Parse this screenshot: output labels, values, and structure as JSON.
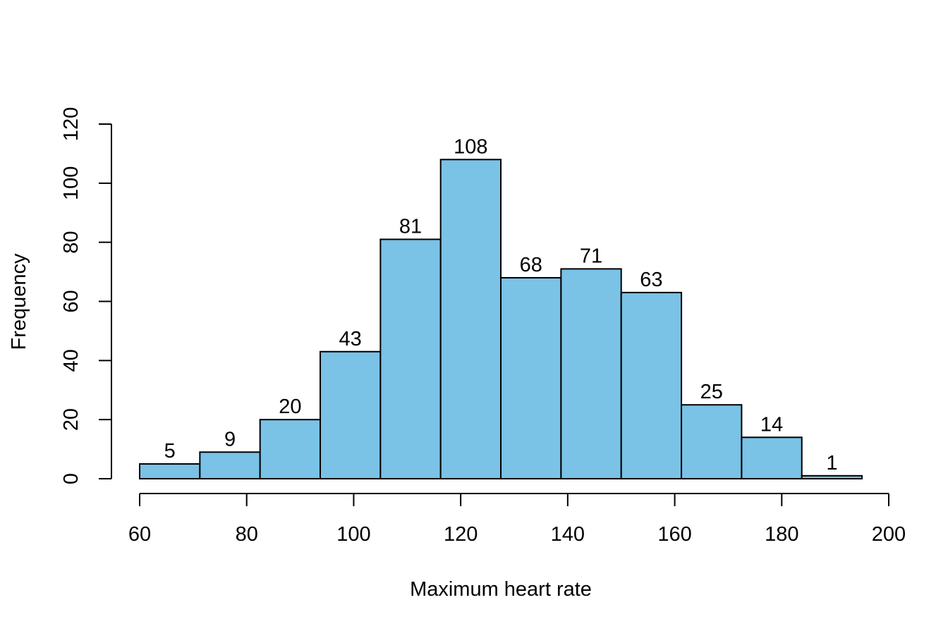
{
  "chart_data": {
    "type": "bar",
    "variant": "histogram",
    "title": "",
    "xlabel": "Maximum heart rate",
    "ylabel": "Frequency",
    "bins": [
      {
        "x0": 60.0,
        "x1": 71.25,
        "value": 5
      },
      {
        "x0": 71.25,
        "x1": 82.5,
        "value": 9
      },
      {
        "x0": 82.5,
        "x1": 93.75,
        "value": 20
      },
      {
        "x0": 93.75,
        "x1": 105.0,
        "value": 43
      },
      {
        "x0": 105.0,
        "x1": 116.25,
        "value": 81
      },
      {
        "x0": 116.25,
        "x1": 127.5,
        "value": 108
      },
      {
        "x0": 127.5,
        "x1": 138.75,
        "value": 68
      },
      {
        "x0": 138.75,
        "x1": 150.0,
        "value": 71
      },
      {
        "x0": 150.0,
        "x1": 161.25,
        "value": 63
      },
      {
        "x0": 161.25,
        "x1": 172.5,
        "value": 25
      },
      {
        "x0": 172.5,
        "x1": 183.75,
        "value": 14
      },
      {
        "x0": 183.75,
        "x1": 195.0,
        "value": 1
      }
    ],
    "xlim": [
      60,
      200
    ],
    "ylim": [
      0,
      120
    ],
    "xticks": [
      60,
      80,
      100,
      120,
      140,
      160,
      180,
      200
    ],
    "yticks": [
      0,
      20,
      40,
      60,
      80,
      100,
      120
    ],
    "bar_color": "#7AC2E6",
    "edge_color": "#000000",
    "grid": false,
    "legend": "none"
  }
}
